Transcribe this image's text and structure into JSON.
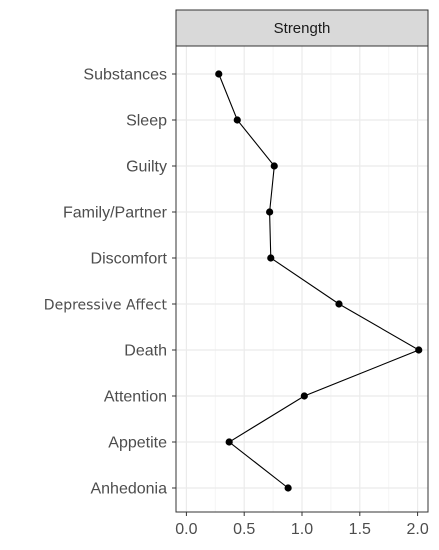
{
  "chart_data": {
    "type": "line",
    "facet_title": "Strength",
    "categories": [
      "Substances",
      "Sleep",
      "Guilty",
      "Family/Partner",
      "Discomfort",
      "Depressive Affect",
      "Death",
      "Attention",
      "Appetite",
      "Anhedonia"
    ],
    "values": [
      0.28,
      0.44,
      0.76,
      0.72,
      0.73,
      1.32,
      2.01,
      1.02,
      0.37,
      0.88
    ],
    "x_ticks": [
      "0.0",
      "0.5",
      "1.0",
      "1.5",
      "2.0"
    ],
    "x_tick_values": [
      0,
      0.5,
      1.0,
      1.5,
      2.0
    ],
    "xlim": [
      -0.09,
      2.09
    ],
    "grid": true,
    "colors": {
      "line": "#000000",
      "point": "#000000",
      "strip_fill": "#d9d9d9",
      "grid_major": "#ebebeb",
      "grid_minor": "#f5f5f5",
      "panel_border": "#333333"
    }
  }
}
